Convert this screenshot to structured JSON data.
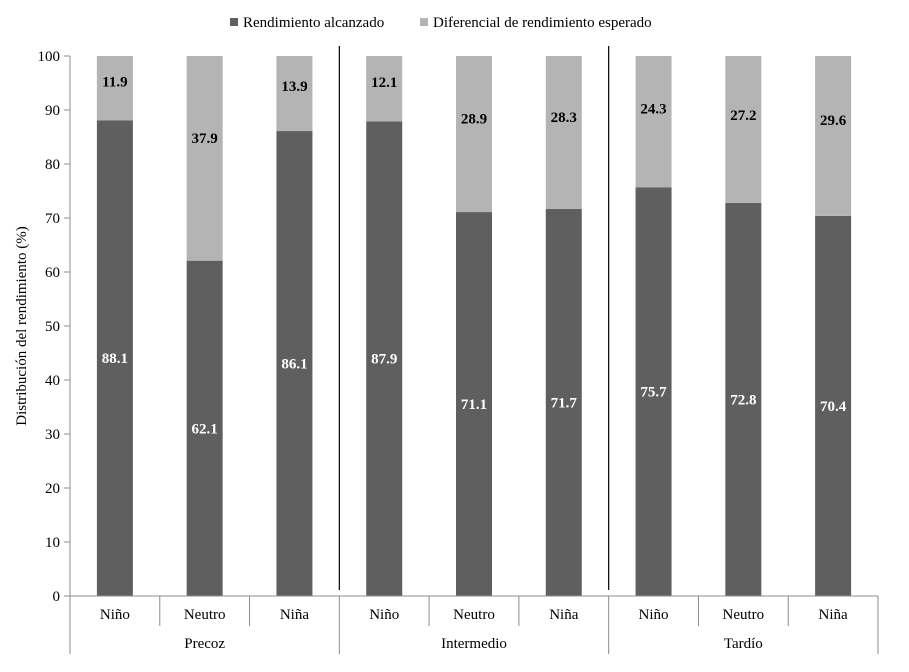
{
  "chart_data": {
    "type": "bar",
    "stacked": true,
    "ylabel": "Distribución del rendimiento (%)",
    "ylim": [
      0,
      100
    ],
    "yticks": [
      0,
      10,
      20,
      30,
      40,
      50,
      60,
      70,
      80,
      90,
      100
    ],
    "grid": false,
    "legend_position": "top-center",
    "groups": [
      {
        "name": "Precoz",
        "categories": [
          "Niño",
          "Neutro",
          "Niña"
        ]
      },
      {
        "name": "Intermedio",
        "categories": [
          "Niño",
          "Neutro",
          "Niña"
        ]
      },
      {
        "name": "Tardío",
        "categories": [
          "Niño",
          "Neutro",
          "Niña"
        ]
      }
    ],
    "categories": [
      "Niño",
      "Neutro",
      "Niña",
      "Niño",
      "Neutro",
      "Niña",
      "Niño",
      "Neutro",
      "Niña"
    ],
    "series": [
      {
        "name": "Rendimiento alcanzado",
        "color": "#5f5f5f",
        "label_color": "#ffffff",
        "values": [
          88.1,
          62.1,
          86.1,
          87.9,
          71.1,
          71.7,
          75.7,
          72.8,
          70.4
        ]
      },
      {
        "name": "Diferencial de rendimiento esperado",
        "color": "#b4b4b4",
        "label_color": "#000000",
        "values": [
          11.9,
          37.9,
          13.9,
          12.1,
          28.9,
          28.3,
          24.3,
          27.2,
          29.6
        ]
      }
    ]
  }
}
